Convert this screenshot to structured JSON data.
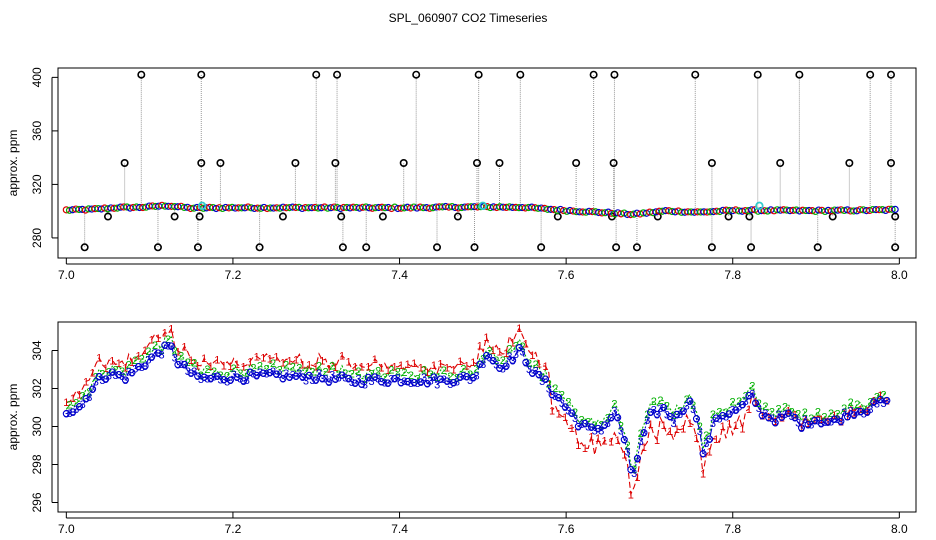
{
  "title": "SPL_060907  CO2 Timeseries",
  "colors": {
    "frame": "#000000",
    "raw_line": "#999999",
    "outlier": "#000000",
    "series_1": "#dd0000",
    "series_2": "#00b000",
    "series_3": "#0000cc",
    "highlight": "#33cccc"
  },
  "chart_data": [
    {
      "type": "scatter",
      "name": "top-panel",
      "ylabel": "approx. ppm",
      "xlabel": "",
      "xlim": [
        6.99,
        8.02
      ],
      "ylim": [
        265,
        407
      ],
      "x_ticks": [
        7.0,
        7.2,
        7.4,
        7.6,
        7.8,
        8.0
      ],
      "x_tick_labels": [
        "7.0",
        "7.2",
        "7.4",
        "7.6",
        "7.8",
        "8.0"
      ],
      "y_ticks": [
        280,
        320,
        360,
        400
      ],
      "y_tick_labels": [
        "280",
        "320",
        "360",
        "400"
      ],
      "baseline": [
        [
          7.0,
          300.8
        ],
        [
          7.03,
          301.3
        ],
        [
          7.06,
          302.6
        ],
        [
          7.09,
          302.9
        ],
        [
          7.12,
          304.2
        ],
        [
          7.15,
          302.3
        ],
        [
          7.2,
          302.6
        ],
        [
          7.3,
          302.6
        ],
        [
          7.4,
          302.5
        ],
        [
          7.5,
          303.2
        ],
        [
          7.55,
          302.9
        ],
        [
          7.6,
          300.5
        ],
        [
          7.65,
          298.8
        ],
        [
          7.68,
          297.6
        ],
        [
          7.72,
          300.2
        ],
        [
          7.76,
          299.2
        ],
        [
          7.8,
          300.5
        ],
        [
          7.85,
          300.5
        ],
        [
          7.9,
          300.3
        ],
        [
          7.95,
          300.6
        ],
        [
          7.99,
          301.0
        ]
      ],
      "outliers_high": [
        7.09,
        7.162,
        7.3,
        7.325,
        7.42,
        7.495,
        7.545,
        7.633,
        7.658,
        7.755,
        7.83,
        7.88,
        7.965,
        7.99
      ],
      "outliers_mid": [
        7.07,
        7.162,
        7.185,
        7.275,
        7.323,
        7.405,
        7.493,
        7.52,
        7.612,
        7.657,
        7.775,
        7.857,
        7.94,
        7.99
      ],
      "outliers_low": [
        7.022,
        7.11,
        7.158,
        7.232,
        7.332,
        7.36,
        7.445,
        7.49,
        7.57,
        7.66,
        7.685,
        7.775,
        7.822,
        7.902,
        7.995
      ],
      "outlier_high_value": 402,
      "outlier_mid_value": 336,
      "outlier_low_value": 273,
      "small_drop_values": [
        7.05,
        7.13,
        7.16,
        7.26,
        7.33,
        7.38,
        7.47,
        7.59,
        7.655,
        7.71,
        7.795,
        7.82,
        7.92,
        7.995
      ],
      "small_drop_value": 296,
      "highlights": [
        [
          7.163,
          304
        ],
        [
          7.5,
          304
        ],
        [
          7.832,
          304
        ]
      ]
    },
    {
      "type": "line",
      "name": "bottom-panel",
      "ylabel": "approx. ppm",
      "xlabel": "",
      "xlim": [
        6.99,
        8.02
      ],
      "ylim": [
        295.5,
        305.5
      ],
      "x_ticks": [
        7.0,
        7.2,
        7.4,
        7.6,
        7.8,
        8.0
      ],
      "x_tick_labels": [
        "7.0",
        "7.2",
        "7.4",
        "7.6",
        "7.8",
        "8.0"
      ],
      "y_ticks": [
        296,
        298,
        300,
        302,
        304
      ],
      "y_tick_labels": [
        "296",
        "298",
        "300",
        "302",
        "304"
      ],
      "series": [
        {
          "name": "1",
          "color": "#dd0000"
        },
        {
          "name": "2",
          "color": "#00b000"
        },
        {
          "name": "3",
          "color": "#0000cc"
        }
      ],
      "gap_x": 7.335,
      "profile": [
        [
          7.0,
          300.8
        ],
        [
          7.02,
          301.2
        ],
        [
          7.035,
          302.3
        ],
        [
          7.05,
          302.8
        ],
        [
          7.07,
          302.6
        ],
        [
          7.09,
          303.2
        ],
        [
          7.11,
          303.9
        ],
        [
          7.125,
          304.2
        ],
        [
          7.135,
          303.3
        ],
        [
          7.16,
          302.5
        ],
        [
          7.2,
          302.6
        ],
        [
          7.25,
          302.7
        ],
        [
          7.3,
          302.6
        ],
        [
          7.33,
          302.5
        ],
        [
          7.34,
          302.4
        ],
        [
          7.4,
          302.5
        ],
        [
          7.45,
          302.4
        ],
        [
          7.49,
          302.6
        ],
        [
          7.505,
          303.9
        ],
        [
          7.52,
          303.1
        ],
        [
          7.545,
          304.0
        ],
        [
          7.56,
          302.9
        ],
        [
          7.575,
          302.3
        ],
        [
          7.59,
          301.5
        ],
        [
          7.6,
          301.0
        ],
        [
          7.615,
          300.2
        ],
        [
          7.63,
          299.8
        ],
        [
          7.645,
          300.0
        ],
        [
          7.66,
          300.8
        ],
        [
          7.672,
          298.8
        ],
        [
          7.68,
          297.3
        ],
        [
          7.69,
          299.2
        ],
        [
          7.7,
          300.5
        ],
        [
          7.715,
          301.0
        ],
        [
          7.73,
          300.3
        ],
        [
          7.745,
          301.3
        ],
        [
          7.755,
          301.0
        ],
        [
          7.765,
          298.5
        ],
        [
          7.78,
          300.5
        ],
        [
          7.795,
          300.7
        ],
        [
          7.81,
          301.0
        ],
        [
          7.825,
          301.7
        ],
        [
          7.83,
          300.9
        ],
        [
          7.85,
          300.4
        ],
        [
          7.87,
          300.6
        ],
        [
          7.88,
          300.1
        ],
        [
          7.9,
          300.4
        ],
        [
          7.92,
          300.2
        ],
        [
          7.94,
          300.8
        ],
        [
          7.96,
          300.9
        ],
        [
          7.98,
          301.3
        ],
        [
          7.985,
          301.2
        ]
      ]
    }
  ]
}
